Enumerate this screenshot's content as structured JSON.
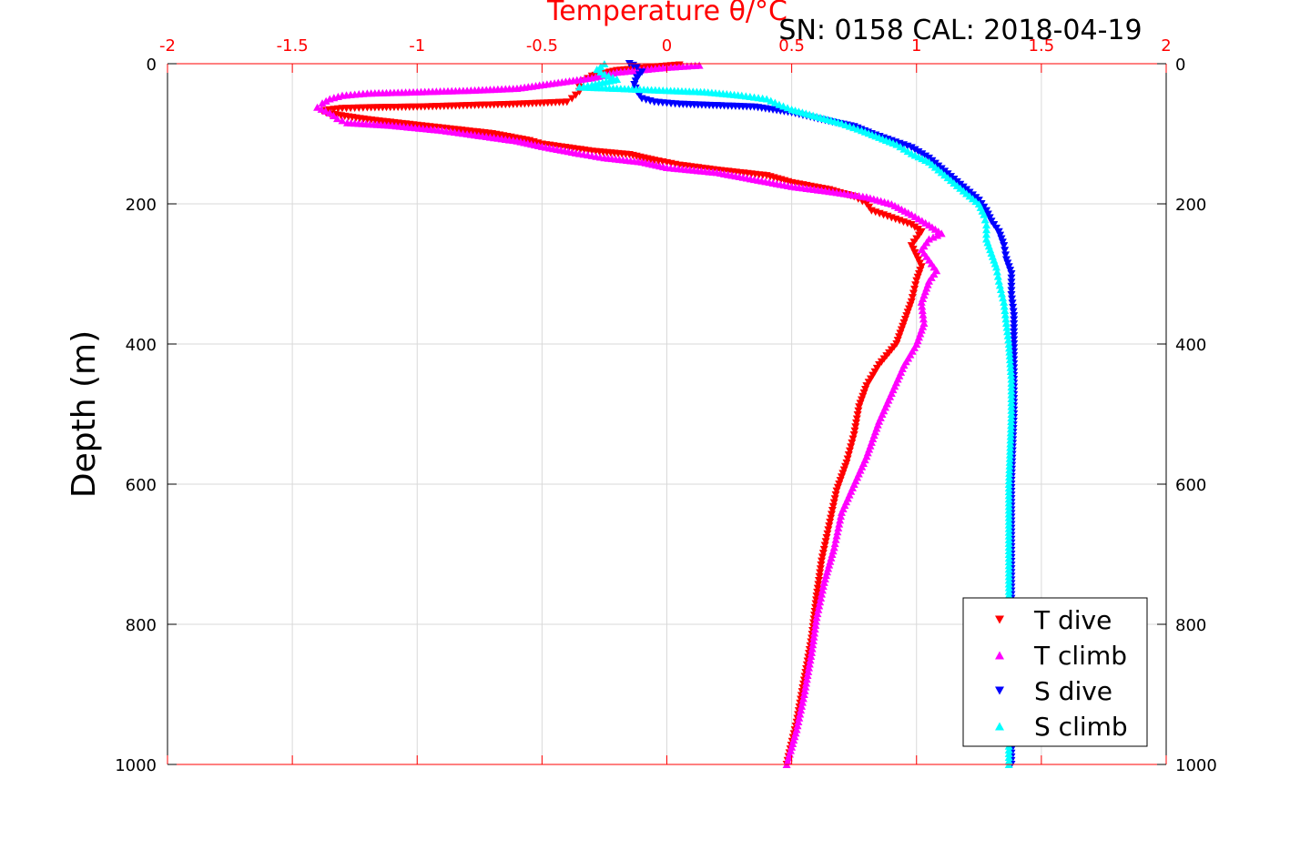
{
  "chart_data": {
    "type": "scatter",
    "title": "SN: 0158  CAL: 2018-04-19",
    "xlabel": "Temperature θ/°C",
    "ylabel": "Depth (m)",
    "xlim": [
      -2,
      2
    ],
    "ylim": [
      0,
      1000
    ],
    "y_reversed": true,
    "grid": true,
    "legend_position": "bottom-right",
    "x_ticks": [
      "-2",
      "-1.5",
      "-1",
      "-0.5",
      "0",
      "0.5",
      "1",
      "1.5",
      "2"
    ],
    "x_tick_values": [
      -2,
      -1.5,
      -1,
      -0.5,
      0,
      0.5,
      1,
      1.5,
      2
    ],
    "y_ticks": [
      "0",
      "200",
      "400",
      "600",
      "800",
      "1000"
    ],
    "y_tick_values": [
      0,
      200,
      400,
      600,
      800,
      1000
    ],
    "colors": {
      "axis_top": "#ff0000",
      "axis": "#000000",
      "grid": "#d9d9d9"
    },
    "series": [
      {
        "name": "T dive",
        "color": "#ff0000",
        "marker": "triangle-down",
        "points": [
          [
            0.05,
            2
          ],
          [
            -0.05,
            5
          ],
          [
            -0.2,
            10
          ],
          [
            -0.3,
            18
          ],
          [
            -0.35,
            28
          ],
          [
            -0.35,
            40
          ],
          [
            -0.38,
            50
          ],
          [
            -0.4,
            55
          ],
          [
            -0.6,
            58
          ],
          [
            -0.8,
            60
          ],
          [
            -1.0,
            62
          ],
          [
            -1.2,
            63
          ],
          [
            -1.3,
            64
          ],
          [
            -1.35,
            66
          ],
          [
            -1.38,
            68
          ],
          [
            -1.35,
            72
          ],
          [
            -1.2,
            80
          ],
          [
            -1.0,
            88
          ],
          [
            -0.9,
            92
          ],
          [
            -0.7,
            100
          ],
          [
            -0.55,
            110
          ],
          [
            -0.5,
            115
          ],
          [
            -0.3,
            125
          ],
          [
            -0.15,
            130
          ],
          [
            -0.05,
            138
          ],
          [
            0.05,
            145
          ],
          [
            0.2,
            152
          ],
          [
            0.4,
            160
          ],
          [
            0.5,
            170
          ],
          [
            0.65,
            180
          ],
          [
            0.75,
            190
          ],
          [
            0.8,
            200
          ],
          [
            0.82,
            210
          ],
          [
            0.9,
            220
          ],
          [
            0.98,
            230
          ],
          [
            1.02,
            240
          ],
          [
            1.0,
            250
          ],
          [
            0.98,
            260
          ],
          [
            1.0,
            275
          ],
          [
            1.02,
            290
          ],
          [
            1.0,
            310
          ],
          [
            0.98,
            340
          ],
          [
            0.95,
            370
          ],
          [
            0.92,
            400
          ],
          [
            0.85,
            430
          ],
          [
            0.8,
            460
          ],
          [
            0.77,
            490
          ],
          [
            0.75,
            530
          ],
          [
            0.72,
            570
          ],
          [
            0.68,
            610
          ],
          [
            0.65,
            660
          ],
          [
            0.62,
            710
          ],
          [
            0.6,
            760
          ],
          [
            0.58,
            820
          ],
          [
            0.55,
            880
          ],
          [
            0.52,
            940
          ],
          [
            0.48,
            1000
          ]
        ]
      },
      {
        "name": "T climb",
        "color": "#ff00ff",
        "marker": "triangle-up",
        "points": [
          [
            0.13,
            2
          ],
          [
            0.0,
            5
          ],
          [
            -0.2,
            12
          ],
          [
            -0.3,
            20
          ],
          [
            -0.6,
            35
          ],
          [
            -0.8,
            38
          ],
          [
            -1.0,
            40
          ],
          [
            -1.2,
            42
          ],
          [
            -1.3,
            45
          ],
          [
            -1.35,
            50
          ],
          [
            -1.38,
            56
          ],
          [
            -1.4,
            62
          ],
          [
            -1.35,
            70
          ],
          [
            -1.32,
            78
          ],
          [
            -1.28,
            84
          ],
          [
            -1.1,
            88
          ],
          [
            -0.9,
            95
          ],
          [
            -0.8,
            100
          ],
          [
            -0.6,
            110
          ],
          [
            -0.5,
            118
          ],
          [
            -0.35,
            128
          ],
          [
            -0.25,
            134
          ],
          [
            -0.1,
            140
          ],
          [
            0.0,
            148
          ],
          [
            0.2,
            155
          ],
          [
            0.35,
            165
          ],
          [
            0.5,
            175
          ],
          [
            0.65,
            182
          ],
          [
            0.8,
            190
          ],
          [
            0.9,
            200
          ],
          [
            0.98,
            215
          ],
          [
            1.05,
            230
          ],
          [
            1.1,
            242
          ],
          [
            1.05,
            250
          ],
          [
            1.02,
            265
          ],
          [
            1.05,
            280
          ],
          [
            1.08,
            295
          ],
          [
            1.05,
            310
          ],
          [
            1.02,
            340
          ],
          [
            1.03,
            370
          ],
          [
            1.0,
            400
          ],
          [
            0.95,
            430
          ],
          [
            0.9,
            470
          ],
          [
            0.85,
            510
          ],
          [
            0.8,
            560
          ],
          [
            0.75,
            600
          ],
          [
            0.7,
            640
          ],
          [
            0.67,
            690
          ],
          [
            0.63,
            740
          ],
          [
            0.6,
            790
          ],
          [
            0.58,
            840
          ],
          [
            0.55,
            900
          ],
          [
            0.52,
            950
          ],
          [
            0.48,
            1000
          ]
        ]
      },
      {
        "name": "S dive",
        "color": "#0000ff",
        "marker": "triangle-down",
        "points": [
          [
            -0.15,
            0
          ],
          [
            -0.12,
            5
          ],
          [
            -0.1,
            12
          ],
          [
            -0.12,
            20
          ],
          [
            -0.13,
            30
          ],
          [
            -0.12,
            40
          ],
          [
            -0.1,
            50
          ],
          [
            -0.05,
            55
          ],
          [
            0.05,
            58
          ],
          [
            0.2,
            60
          ],
          [
            0.35,
            62
          ],
          [
            0.5,
            70
          ],
          [
            0.62,
            80
          ],
          [
            0.75,
            90
          ],
          [
            0.82,
            100
          ],
          [
            0.9,
            110
          ],
          [
            0.98,
            120
          ],
          [
            1.05,
            135
          ],
          [
            1.1,
            150
          ],
          [
            1.15,
            165
          ],
          [
            1.2,
            180
          ],
          [
            1.25,
            195
          ],
          [
            1.28,
            210
          ],
          [
            1.3,
            225
          ],
          [
            1.33,
            240
          ],
          [
            1.35,
            260
          ],
          [
            1.36,
            280
          ],
          [
            1.38,
            300
          ],
          [
            1.38,
            330
          ],
          [
            1.39,
            360
          ],
          [
            1.39,
            400
          ],
          [
            1.39,
            440
          ],
          [
            1.39,
            500
          ],
          [
            1.38,
            600
          ],
          [
            1.38,
            700
          ],
          [
            1.38,
            800
          ],
          [
            1.38,
            900
          ],
          [
            1.38,
            1000
          ]
        ]
      },
      {
        "name": "S climb",
        "color": "#00ffff",
        "marker": "triangle-up",
        "points": [
          [
            -0.25,
            0
          ],
          [
            -0.28,
            8
          ],
          [
            -0.25,
            15
          ],
          [
            -0.2,
            22
          ],
          [
            -0.3,
            30
          ],
          [
            -0.35,
            33
          ],
          [
            -0.2,
            35
          ],
          [
            0.0,
            38
          ],
          [
            0.15,
            40
          ],
          [
            0.3,
            45
          ],
          [
            0.4,
            50
          ],
          [
            0.45,
            58
          ],
          [
            0.5,
            65
          ],
          [
            0.6,
            75
          ],
          [
            0.7,
            85
          ],
          [
            0.78,
            95
          ],
          [
            0.85,
            105
          ],
          [
            0.92,
            115
          ],
          [
            0.98,
            128
          ],
          [
            1.05,
            140
          ],
          [
            1.1,
            155
          ],
          [
            1.15,
            170
          ],
          [
            1.2,
            185
          ],
          [
            1.25,
            200
          ],
          [
            1.27,
            215
          ],
          [
            1.28,
            230
          ],
          [
            1.28,
            250
          ],
          [
            1.3,
            270
          ],
          [
            1.32,
            290
          ],
          [
            1.33,
            310
          ],
          [
            1.35,
            340
          ],
          [
            1.36,
            370
          ],
          [
            1.37,
            400
          ],
          [
            1.38,
            450
          ],
          [
            1.38,
            500
          ],
          [
            1.37,
            600
          ],
          [
            1.37,
            700
          ],
          [
            1.37,
            800
          ],
          [
            1.37,
            900
          ],
          [
            1.37,
            1000
          ]
        ]
      }
    ]
  }
}
